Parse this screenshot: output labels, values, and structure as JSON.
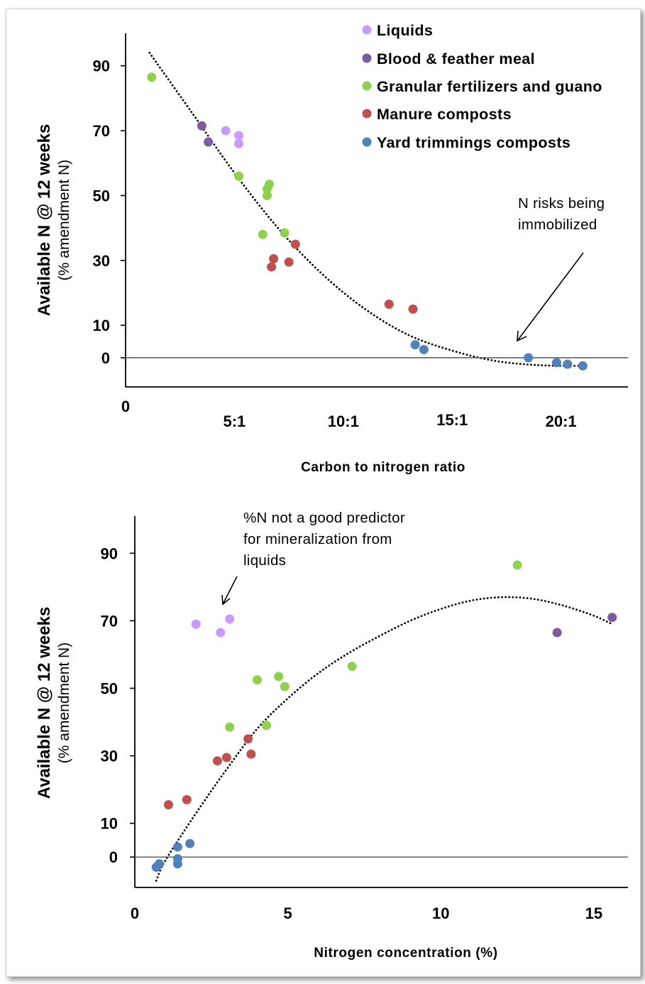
{
  "colors": {
    "Liquids": "#cc99ff",
    "Blood & feather meal": "#7f5aa0",
    "Granular fertilizers and guano": "#8fd14f",
    "Manure composts": "#c0504d",
    "Yard trimmings composts": "#4f81bd"
  },
  "chart_data": [
    {
      "type": "scatter",
      "title": "",
      "xlabel": "Carbon to nitrogen ratio",
      "ylabel": "Available N @ 12 weeks",
      "ylabel_sub": "(% amendment N)",
      "xlim": [
        0,
        22
      ],
      "ylim": [
        -9,
        100
      ],
      "x_ticks": [
        {
          "v": 0,
          "t": "0"
        },
        {
          "v": 5,
          "t": "5:1"
        },
        {
          "v": 10,
          "t": "10:1"
        },
        {
          "v": 15,
          "t": "15:1"
        },
        {
          "v": 20,
          "t": "20:1"
        }
      ],
      "y_ticks": [
        {
          "v": 0,
          "t": "0"
        },
        {
          "v": 10,
          "t": "10"
        },
        {
          "v": 30,
          "t": "30"
        },
        {
          "v": 50,
          "t": "50"
        },
        {
          "v": 70,
          "t": "70"
        },
        {
          "v": 90,
          "t": "90"
        }
      ],
      "reference_line_y": 0,
      "legend_position": "top-right",
      "series": [
        {
          "name": "Liquids",
          "points": [
            [
              4.6,
              70
            ],
            [
              5.2,
              68.5
            ],
            [
              5.2,
              66
            ]
          ]
        },
        {
          "name": "Blood & feather meal",
          "points": [
            [
              3.5,
              71.5
            ],
            [
              3.8,
              66.5
            ]
          ]
        },
        {
          "name": "Granular fertilizers and guano",
          "points": [
            [
              1.2,
              86.5
            ],
            [
              5.2,
              56
            ],
            [
              6.6,
              53.5
            ],
            [
              6.5,
              52
            ],
            [
              6.5,
              50
            ],
            [
              6.3,
              38
            ],
            [
              7.3,
              38.5
            ]
          ]
        },
        {
          "name": "Manure composts",
          "points": [
            [
              7.8,
              35
            ],
            [
              6.8,
              30.5
            ],
            [
              7.5,
              29.5
            ],
            [
              6.7,
              28
            ],
            [
              12.1,
              16.5
            ],
            [
              13.2,
              15
            ]
          ]
        },
        {
          "name": "Yard trimmings composts",
          "points": [
            [
              13.3,
              4
            ],
            [
              13.7,
              2.5
            ],
            [
              18.5,
              0
            ],
            [
              19.8,
              -1.5
            ],
            [
              20.3,
              -2
            ],
            [
              21.0,
              -2.5
            ]
          ]
        }
      ],
      "trendline": {
        "type": "polynomial",
        "points": [
          [
            1.1,
            94
          ],
          [
            3,
            76
          ],
          [
            5,
            57
          ],
          [
            7,
            40
          ],
          [
            9,
            26
          ],
          [
            11,
            15
          ],
          [
            13,
            7
          ],
          [
            15,
            2.2
          ],
          [
            17,
            -1
          ],
          [
            19,
            -2.3
          ],
          [
            21,
            -2.5
          ]
        ]
      },
      "annotations": [
        {
          "text": [
            "N risks being",
            "immobilized"
          ],
          "arrow_to": [
            17.0,
            4
          ]
        }
      ]
    },
    {
      "type": "scatter",
      "title": "",
      "xlabel": "Nitrogen concentration (%)",
      "ylabel": "Available N @ 12 weeks",
      "ylabel_sub": "(% amendment N)",
      "xlim": [
        0,
        16
      ],
      "ylim": [
        -9,
        101
      ],
      "x_ticks": [
        {
          "v": 0,
          "t": "0"
        },
        {
          "v": 5,
          "t": "5"
        },
        {
          "v": 10,
          "t": "10"
        },
        {
          "v": 15,
          "t": "15"
        }
      ],
      "y_ticks": [
        {
          "v": 0,
          "t": "0"
        },
        {
          "v": 10,
          "t": "10"
        },
        {
          "v": 30,
          "t": "30"
        },
        {
          "v": 50,
          "t": "50"
        },
        {
          "v": 70,
          "t": "70"
        },
        {
          "v": 90,
          "t": "90"
        }
      ],
      "reference_line_y": 0,
      "series": [
        {
          "name": "Liquids",
          "points": [
            [
              2.0,
              69
            ],
            [
              2.8,
              66.5
            ],
            [
              3.1,
              70.5
            ]
          ]
        },
        {
          "name": "Blood & feather meal",
          "points": [
            [
              13.8,
              66.5
            ],
            [
              15.6,
              71
            ]
          ]
        },
        {
          "name": "Granular fertilizers and guano",
          "points": [
            [
              12.5,
              86.5
            ],
            [
              7.1,
              56.5
            ],
            [
              4.7,
              53.5
            ],
            [
              4.0,
              52.5
            ],
            [
              4.9,
              50.5
            ],
            [
              3.1,
              38.5
            ],
            [
              4.3,
              39
            ]
          ]
        },
        {
          "name": "Manure composts",
          "points": [
            [
              3.7,
              35
            ],
            [
              3.8,
              30.5
            ],
            [
              3.0,
              29.5
            ],
            [
              2.7,
              28.5
            ],
            [
              1.7,
              17
            ],
            [
              1.1,
              15.5
            ]
          ]
        },
        {
          "name": "Yard trimmings composts",
          "points": [
            [
              1.8,
              4
            ],
            [
              1.4,
              3
            ],
            [
              1.4,
              -0.5
            ],
            [
              1.4,
              -2
            ],
            [
              0.8,
              -2
            ],
            [
              0.7,
              -3
            ]
          ]
        }
      ],
      "trendline": {
        "type": "polynomial",
        "points": [
          [
            0.7,
            -7
          ],
          [
            1,
            -1
          ],
          [
            2,
            13
          ],
          [
            3,
            26
          ],
          [
            4,
            38
          ],
          [
            5,
            47
          ],
          [
            6,
            54.5
          ],
          [
            7,
            60.5
          ],
          [
            8,
            65.5
          ],
          [
            9,
            70
          ],
          [
            10,
            73.5
          ],
          [
            11,
            76
          ],
          [
            12,
            77
          ],
          [
            13,
            76.5
          ],
          [
            14,
            74.5
          ],
          [
            15,
            71.5
          ],
          [
            15.6,
            69
          ]
        ]
      },
      "annotations": [
        {
          "text": [
            "%N not a good predictor",
            "for mineralization  from",
            "liquids"
          ],
          "arrow_to": [
            2.8,
            76
          ]
        }
      ]
    }
  ]
}
